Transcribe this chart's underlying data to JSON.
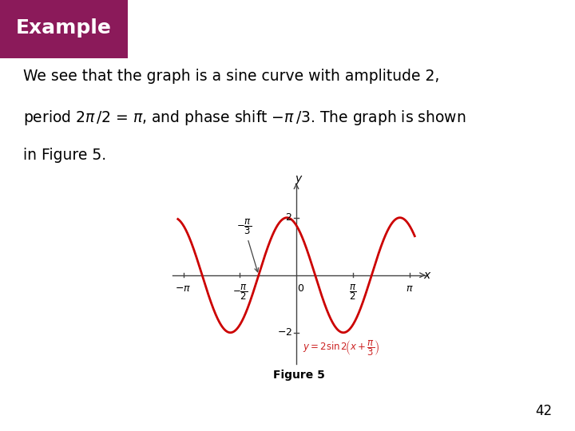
{
  "title_bg_blue": "#2B4EA8",
  "title_bg_purple": "#8B1A5A",
  "curve_color": "#CC0000",
  "equation_color": "#CC2222",
  "axis_color": "#444444",
  "text_color": "#000000",
  "bg_color": "#FFFFFF",
  "page_number": "42",
  "figure_caption": "Figure 5"
}
